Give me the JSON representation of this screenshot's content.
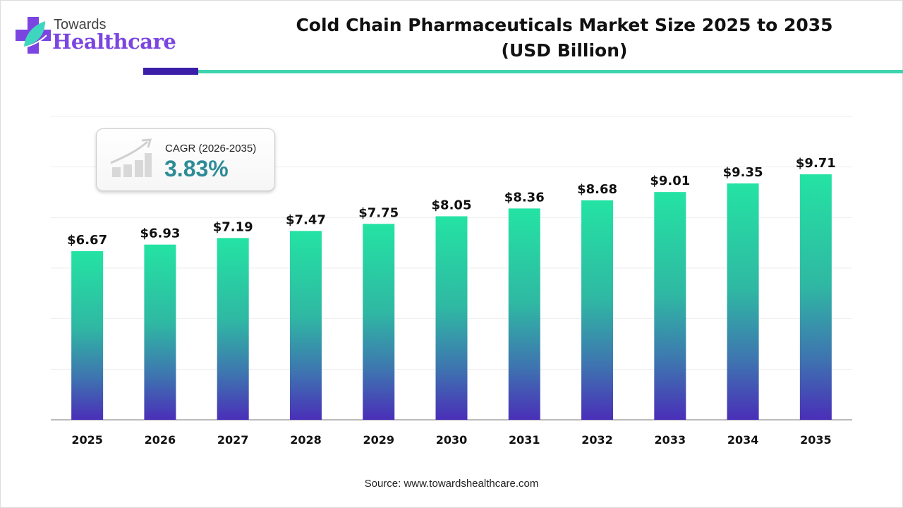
{
  "logo": {
    "top": "Towards",
    "bottom": "Healthcare"
  },
  "title_line1": "Cold Chain Pharmaceuticals Market Size 2025 to 2035",
  "title_line2": "(USD Billion)",
  "cagr": {
    "label": "CAGR (2026-2035)",
    "value": "3.83%"
  },
  "source": "Source: www.towardshealthcare.com",
  "colors": {
    "bar_top": "#24e3a3",
    "bar_bottom": "#4a2fb8",
    "accent_dark": "#3b1fa8",
    "accent_teal": "#3ed3ae",
    "cagr_value": "#2e8c97"
  },
  "chart_data": {
    "type": "bar",
    "title": "Cold Chain Pharmaceuticals Market Size 2025 to 2035 (USD Billion)",
    "categories": [
      "2025",
      "2026",
      "2027",
      "2028",
      "2029",
      "2030",
      "2031",
      "2032",
      "2033",
      "2034",
      "2035"
    ],
    "values": [
      6.67,
      6.93,
      7.19,
      7.47,
      7.75,
      8.05,
      8.36,
      8.68,
      9.01,
      9.35,
      9.71
    ],
    "data_labels": [
      "$6.67",
      "$6.93",
      "$7.19",
      "$7.47",
      "$7.75",
      "$8.05",
      "$8.36",
      "$8.68",
      "$9.01",
      "$9.35",
      "$9.71"
    ],
    "xlabel": "",
    "ylabel": "",
    "ylim": [
      0,
      12
    ],
    "grid": true,
    "y_axis_labels_shown": false
  }
}
